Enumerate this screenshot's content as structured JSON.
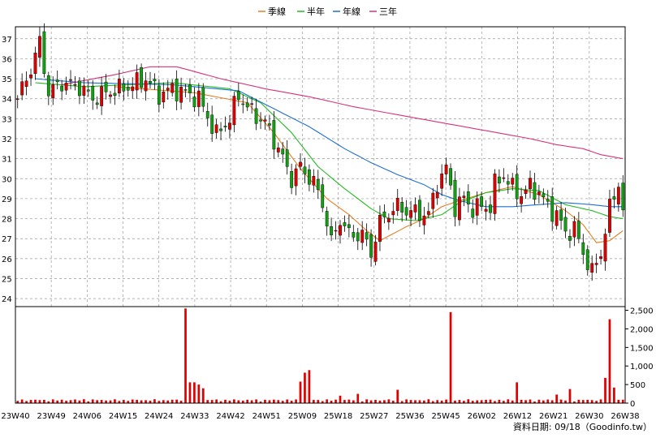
{
  "chart_data": {
    "type": "candlestick",
    "legend": [
      {
        "name": "季線",
        "color": "#e67e22"
      },
      {
        "name": "半年",
        "color": "#22bb22"
      },
      {
        "name": "年線",
        "color": "#1f6fd1"
      },
      {
        "name": "三年",
        "color": "#d6337a"
      }
    ],
    "price_axis": {
      "ylim": [
        23.6,
        37.6
      ],
      "ticks": [
        24,
        25,
        26,
        27,
        28,
        29,
        30,
        31,
        32,
        33,
        34,
        35,
        36,
        37
      ]
    },
    "volume_axis": {
      "ylim": [
        0,
        2600
      ],
      "ticks": [
        0,
        500,
        1000,
        1500,
        2000,
        2500
      ],
      "tick_labels": [
        "0",
        "500",
        "1,000",
        "1,500",
        "2,000",
        "2,500"
      ]
    },
    "x_ticks": [
      "23W40",
      "23W49",
      "24W06",
      "24W15",
      "24W24",
      "24W33",
      "24W42",
      "24W51",
      "25W09",
      "25W18",
      "25W27",
      "25W36",
      "25W45",
      "26W02",
      "26W12",
      "26W21",
      "26W30",
      "26W38"
    ],
    "price_anchors": [
      [
        0,
        34.0
      ],
      [
        3,
        35.5
      ],
      [
        5,
        36.8
      ],
      [
        7,
        34.3
      ],
      [
        10,
        34.8
      ],
      [
        14,
        34.6
      ],
      [
        17,
        34.0
      ],
      [
        20,
        34.3
      ],
      [
        25,
        34.6
      ],
      [
        29,
        35.0
      ],
      [
        32,
        34.2
      ],
      [
        35,
        34.5
      ],
      [
        38,
        34.3
      ],
      [
        41,
        34.0
      ],
      [
        45,
        32.2
      ],
      [
        48,
        33.0
      ],
      [
        50,
        34.2
      ],
      [
        53,
        33.3
      ],
      [
        56,
        32.8
      ],
      [
        59,
        31.5
      ],
      [
        62,
        30.0
      ],
      [
        64,
        30.6
      ],
      [
        67,
        29.8
      ],
      [
        69,
        28.8
      ],
      [
        71,
        26.8
      ],
      [
        73,
        28.0
      ],
      [
        75,
        27.2
      ],
      [
        78,
        27.2
      ],
      [
        80,
        26.3
      ],
      [
        82,
        27.8
      ],
      [
        84,
        28.3
      ],
      [
        86,
        28.6
      ],
      [
        88,
        28.4
      ],
      [
        90,
        28.3
      ],
      [
        93,
        28.2
      ],
      [
        95,
        29.8
      ],
      [
        97,
        30.5
      ],
      [
        99,
        28.6
      ],
      [
        101,
        29.0
      ],
      [
        103,
        28.5
      ],
      [
        105,
        28.6
      ],
      [
        107,
        28.6
      ],
      [
        108,
        29.7
      ],
      [
        110,
        30.2
      ],
      [
        112,
        29.5
      ],
      [
        114,
        29.2
      ],
      [
        116,
        29.6
      ],
      [
        118,
        29.3
      ],
      [
        120,
        28.6
      ],
      [
        122,
        28.2
      ],
      [
        124,
        27.3
      ],
      [
        126,
        27.5
      ],
      [
        128,
        26.3
      ],
      [
        130,
        25.3
      ],
      [
        132,
        26.3
      ],
      [
        134,
        28.5
      ],
      [
        136,
        29.8
      ],
      [
        137,
        28.4
      ]
    ],
    "ma_series": [
      {
        "name": "季線",
        "points": [
          [
            22,
            34.6
          ],
          [
            40,
            34.3
          ],
          [
            52,
            33.8
          ],
          [
            58,
            32.3
          ],
          [
            64,
            30.5
          ],
          [
            70,
            29.0
          ],
          [
            75,
            28.2
          ],
          [
            79,
            27.4
          ],
          [
            82,
            26.9
          ],
          [
            88,
            27.6
          ],
          [
            92,
            28.0
          ],
          [
            96,
            28.6
          ],
          [
            100,
            28.9
          ],
          [
            106,
            29.3
          ],
          [
            112,
            29.6
          ],
          [
            118,
            29.2
          ],
          [
            124,
            28.4
          ],
          [
            128,
            27.7
          ],
          [
            131,
            26.8
          ],
          [
            134,
            26.9
          ],
          [
            137,
            27.4
          ]
        ]
      },
      {
        "name": "半年",
        "points": [
          [
            4,
            34.8
          ],
          [
            15,
            34.6
          ],
          [
            35,
            34.8
          ],
          [
            48,
            34.5
          ],
          [
            55,
            33.8
          ],
          [
            62,
            32.3
          ],
          [
            68,
            30.6
          ],
          [
            74,
            29.5
          ],
          [
            80,
            28.5
          ],
          [
            84,
            28.0
          ],
          [
            90,
            27.9
          ],
          [
            96,
            28.2
          ],
          [
            100,
            28.8
          ],
          [
            106,
            29.3
          ],
          [
            112,
            29.5
          ],
          [
            118,
            29.4
          ],
          [
            124,
            28.7
          ],
          [
            130,
            28.4
          ],
          [
            134,
            28.1
          ],
          [
            137,
            28.0
          ]
        ]
      },
      {
        "name": "年線",
        "points": [
          [
            4,
            35.0
          ],
          [
            15,
            34.8
          ],
          [
            35,
            34.7
          ],
          [
            50,
            34.4
          ],
          [
            58,
            33.5
          ],
          [
            66,
            32.6
          ],
          [
            74,
            31.5
          ],
          [
            80,
            30.8
          ],
          [
            86,
            30.2
          ],
          [
            92,
            29.7
          ],
          [
            96,
            29.2
          ],
          [
            100,
            28.9
          ],
          [
            106,
            28.6
          ],
          [
            112,
            28.6
          ],
          [
            118,
            28.7
          ],
          [
            124,
            28.8
          ],
          [
            130,
            28.7
          ],
          [
            134,
            28.6
          ],
          [
            137,
            28.6
          ]
        ]
      },
      {
        "name": "三年",
        "points": [
          [
            10,
            34.7
          ],
          [
            22,
            35.2
          ],
          [
            30,
            35.6
          ],
          [
            36,
            35.6
          ],
          [
            46,
            35.0
          ],
          [
            56,
            34.5
          ],
          [
            66,
            34.1
          ],
          [
            76,
            33.6
          ],
          [
            86,
            33.2
          ],
          [
            96,
            32.8
          ],
          [
            106,
            32.4
          ],
          [
            116,
            32.0
          ],
          [
            122,
            31.7
          ],
          [
            128,
            31.5
          ],
          [
            132,
            31.2
          ],
          [
            137,
            31.0
          ]
        ]
      }
    ],
    "volume_spikes": [
      [
        15,
        105
      ],
      [
        38,
        2550
      ],
      [
        39,
        560
      ],
      [
        40,
        560
      ],
      [
        41,
        500
      ],
      [
        42,
        400
      ],
      [
        64,
        580
      ],
      [
        65,
        820
      ],
      [
        66,
        890
      ],
      [
        73,
        200
      ],
      [
        77,
        250
      ],
      [
        86,
        360
      ],
      [
        98,
        2450
      ],
      [
        113,
        560
      ],
      [
        122,
        230
      ],
      [
        125,
        380
      ],
      [
        133,
        680
      ],
      [
        134,
        2260
      ],
      [
        135,
        420
      ]
    ]
  },
  "source": "資料日期: 09/18（Goodinfo.tw）"
}
